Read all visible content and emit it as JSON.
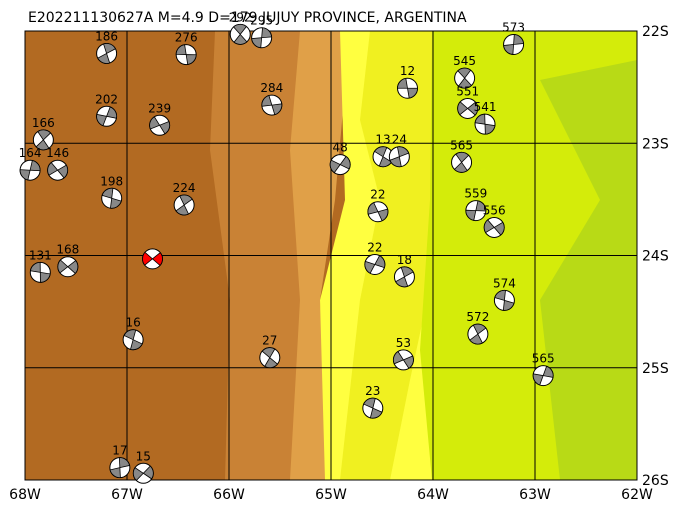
{
  "chart_data": {
    "type": "map",
    "title": "E202211130627A M=4.9 D=179 JUJUY PROVINCE, ARGENTINA",
    "xlim": [
      -68,
      -62
    ],
    "ylim": [
      -26,
      -22
    ],
    "xticks": [
      {
        "value": -68,
        "label": "68W"
      },
      {
        "value": -67,
        "label": "67W"
      },
      {
        "value": -66,
        "label": "66W"
      },
      {
        "value": -65,
        "label": "65W"
      },
      {
        "value": -64,
        "label": "64W"
      },
      {
        "value": -63,
        "label": "63W"
      },
      {
        "value": -62,
        "label": "62W"
      }
    ],
    "yticks": [
      {
        "value": -22,
        "label": "22S"
      },
      {
        "value": -23,
        "label": "23S"
      },
      {
        "value": -24,
        "label": "24S"
      },
      {
        "value": -25,
        "label": "25S"
      },
      {
        "value": -26,
        "label": "26S"
      }
    ],
    "grid": true,
    "main_event": {
      "lon": -66.75,
      "lat": -24.03,
      "color": "#ff0000"
    },
    "events": [
      {
        "label": "12",
        "lon": -64.25,
        "lat": -22.51
      },
      {
        "label": "545",
        "lon": -63.69,
        "lat": -22.42
      },
      {
        "label": "573",
        "lon": -63.21,
        "lat": -22.12
      },
      {
        "label": "551",
        "lon": -63.66,
        "lat": -22.69
      },
      {
        "label": "541",
        "lon": -63.49,
        "lat": -22.83
      },
      {
        "label": "565",
        "lon": -63.72,
        "lat": -23.17
      },
      {
        "label": "559",
        "lon": -63.58,
        "lat": -23.6
      },
      {
        "label": "556",
        "lon": -63.4,
        "lat": -23.75
      },
      {
        "label": "574",
        "lon": -63.3,
        "lat": -24.4
      },
      {
        "label": "572",
        "lon": -63.56,
        "lat": -24.7
      },
      {
        "label": "565",
        "lon": -62.92,
        "lat": -25.07
      },
      {
        "label": "53",
        "lon": -64.29,
        "lat": -24.93
      },
      {
        "label": "23",
        "lon": -64.59,
        "lat": -25.36
      },
      {
        "label": "18",
        "lon": -64.28,
        "lat": -24.19
      },
      {
        "label": "22",
        "lon": -64.57,
        "lat": -24.08
      },
      {
        "label": "22",
        "lon": -64.54,
        "lat": -23.61
      },
      {
        "label": "13",
        "lon": -64.49,
        "lat": -23.12
      },
      {
        "label": "24",
        "lon": -64.33,
        "lat": -23.12
      },
      {
        "label": "48",
        "lon": -64.91,
        "lat": -23.19
      },
      {
        "label": "284",
        "lon": -65.58,
        "lat": -22.66
      },
      {
        "label": "27",
        "lon": -65.6,
        "lat": -24.91
      },
      {
        "label": "17",
        "lon": -67.07,
        "lat": -25.89
      },
      {
        "label": "15",
        "lon": -66.84,
        "lat": -25.94
      },
      {
        "label": "276",
        "lon": -66.42,
        "lat": -22.21
      },
      {
        "label": "292",
        "lon": -65.89,
        "lat": -22.03
      },
      {
        "label": "295",
        "lon": -65.68,
        "lat": -22.06
      },
      {
        "label": "168",
        "lon": -67.58,
        "lat": -24.1
      },
      {
        "label": "131",
        "lon": -67.85,
        "lat": -24.15
      },
      {
        "label": "166",
        "lon": -67.82,
        "lat": -22.97
      },
      {
        "label": "164",
        "lon": -67.95,
        "lat": -23.24
      },
      {
        "label": "146",
        "lon": -67.68,
        "lat": -23.24
      },
      {
        "label": "198",
        "lon": -67.15,
        "lat": -23.49
      },
      {
        "label": "224",
        "lon": -66.44,
        "lat": -23.55
      },
      {
        "label": "202",
        "lon": -67.2,
        "lat": -22.76
      },
      {
        "label": "239",
        "lon": -66.68,
        "lat": -22.84
      },
      {
        "label": "16",
        "lon": -66.94,
        "lat": -24.75
      },
      {
        "label": "186",
        "lon": -67.2,
        "lat": -22.2
      }
    ]
  }
}
